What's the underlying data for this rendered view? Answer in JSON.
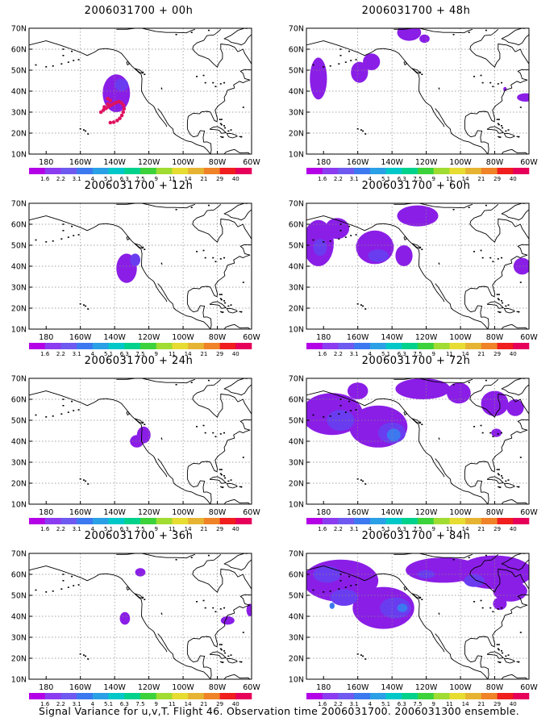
{
  "caption": "Signal Variance for u,v,T. Flight 46. Observation time 2006031700. 2006031300 ensemble.",
  "colors": {
    "land_outline": "#000000",
    "grid": "#888888",
    "observation_dots": "#e0115f"
  },
  "chart_data": {
    "type": "heatmap",
    "lon_ticks": [
      "180",
      "160W",
      "140W",
      "120W",
      "100W",
      "80W",
      "60W"
    ],
    "lat_ticks": [
      "10N",
      "20N",
      "30N",
      "40N",
      "50N",
      "60N",
      "70N"
    ],
    "xlim": [
      -190,
      -60
    ],
    "ylim": [
      10,
      70
    ],
    "legend": {
      "labels": [
        "1.6",
        "2.2",
        "3.1",
        "4",
        "5.1",
        "6.3",
        "7.5",
        "9",
        "11",
        "14",
        "21",
        "29",
        "40"
      ],
      "colors": [
        "#b400e6",
        "#8c3cf0",
        "#6e5af0",
        "#3c78f0",
        "#2aa0e6",
        "#00c8c8",
        "#00d28c",
        "#3cd23c",
        "#a0dc32",
        "#e6dc32",
        "#e6b432",
        "#f08228",
        "#f01e1e",
        "#e6005a"
      ]
    },
    "panels": [
      {
        "title": "2006031700 + 00h",
        "blobs": [
          {
            "lon": -139,
            "lat": 39,
            "rx": 8,
            "ry": 9,
            "level": 0
          },
          {
            "lon": -136,
            "lat": 43,
            "rx": 4,
            "ry": 3,
            "level": 1
          }
        ],
        "dots": [
          {
            "lon": -148,
            "lat": 30
          },
          {
            "lon": -146.5,
            "lat": 31
          },
          {
            "lon": -145,
            "lat": 31.8
          },
          {
            "lon": -143.5,
            "lat": 32.6
          },
          {
            "lon": -142,
            "lat": 33.4
          },
          {
            "lon": -140.5,
            "lat": 34
          },
          {
            "lon": -139,
            "lat": 34.6
          },
          {
            "lon": -137.5,
            "lat": 35
          },
          {
            "lon": -136,
            "lat": 34.4
          },
          {
            "lon": -134.8,
            "lat": 33.2
          },
          {
            "lon": -134.5,
            "lat": 31.6
          },
          {
            "lon": -135,
            "lat": 30
          },
          {
            "lon": -135.8,
            "lat": 28.4
          },
          {
            "lon": -137,
            "lat": 27
          },
          {
            "lon": -138.5,
            "lat": 26
          },
          {
            "lon": -140.5,
            "lat": 25.2
          },
          {
            "lon": -142.5,
            "lat": 25
          },
          {
            "lon": -146,
            "lat": 32.5
          },
          {
            "lon": -144,
            "lat": 33.8
          },
          {
            "lon": -142.5,
            "lat": 35.6
          },
          {
            "lon": -144,
            "lat": 36.4
          }
        ]
      },
      {
        "title": "2006031700 + 48h",
        "blobs": [
          {
            "lon": -183,
            "lat": 46,
            "rx": 5,
            "ry": 10,
            "level": 0
          },
          {
            "lon": -159,
            "lat": 49,
            "rx": 5,
            "ry": 5,
            "level": 0
          },
          {
            "lon": -152,
            "lat": 54,
            "rx": 5,
            "ry": 4,
            "level": 0
          },
          {
            "lon": -130,
            "lat": 68,
            "rx": 7,
            "ry": 4,
            "level": 0
          },
          {
            "lon": -121,
            "lat": 65,
            "rx": 3,
            "ry": 2,
            "level": 0
          },
          {
            "lon": -62,
            "lat": 37,
            "rx": 5,
            "ry": 2,
            "level": 0
          },
          {
            "lon": -74,
            "lat": 41,
            "rx": 1,
            "ry": 1,
            "level": 0
          }
        ],
        "dots": []
      },
      {
        "title": "2006031700 + 12h",
        "blobs": [
          {
            "lon": -133,
            "lat": 39,
            "rx": 6,
            "ry": 7,
            "level": 0
          },
          {
            "lon": -128,
            "lat": 43,
            "rx": 3,
            "ry": 3,
            "level": 1
          }
        ],
        "dots": []
      },
      {
        "title": "2006031700 + 60h",
        "blobs": [
          {
            "lon": -183,
            "lat": 51,
            "rx": 9,
            "ry": 11,
            "level": 0
          },
          {
            "lon": -172,
            "lat": 58,
            "rx": 7,
            "ry": 5,
            "level": 0
          },
          {
            "lon": -150,
            "lat": 49,
            "rx": 11,
            "ry": 8,
            "level": 0
          },
          {
            "lon": -133,
            "lat": 45,
            "rx": 5,
            "ry": 5,
            "level": 0
          },
          {
            "lon": -148,
            "lat": 45,
            "rx": 6,
            "ry": 3,
            "level": 1
          },
          {
            "lon": -182,
            "lat": 49,
            "rx": 4,
            "ry": 4,
            "level": 1
          },
          {
            "lon": -125,
            "lat": 64,
            "rx": 12,
            "ry": 5,
            "level": 0
          },
          {
            "lon": -64,
            "lat": 40,
            "rx": 5,
            "ry": 4,
            "level": 0
          }
        ],
        "dots": []
      },
      {
        "title": "2006031700 + 24h",
        "blobs": [
          {
            "lon": -127,
            "lat": 40,
            "rx": 4,
            "ry": 3,
            "level": 0
          },
          {
            "lon": -123,
            "lat": 43,
            "rx": 4,
            "ry": 4,
            "level": 0
          }
        ],
        "dots": []
      },
      {
        "title": "2006031700 + 72h",
        "blobs": [
          {
            "lon": -175,
            "lat": 53,
            "rx": 18,
            "ry": 10,
            "level": 0
          },
          {
            "lon": -148,
            "lat": 47,
            "rx": 17,
            "ry": 10,
            "level": 0
          },
          {
            "lon": -140,
            "lat": 44,
            "rx": 8,
            "ry": 5,
            "level": 1
          },
          {
            "lon": -139,
            "lat": 43,
            "rx": 4,
            "ry": 3,
            "level": 2
          },
          {
            "lon": -170,
            "lat": 50,
            "rx": 8,
            "ry": 5,
            "level": 1
          },
          {
            "lon": -160,
            "lat": 64,
            "rx": 6,
            "ry": 4,
            "level": 0
          },
          {
            "lon": -122,
            "lat": 65,
            "rx": 16,
            "ry": 5,
            "level": 0
          },
          {
            "lon": -101,
            "lat": 63,
            "rx": 7,
            "ry": 5,
            "level": 0
          },
          {
            "lon": -80,
            "lat": 58,
            "rx": 8,
            "ry": 6,
            "level": 0
          },
          {
            "lon": -68,
            "lat": 56,
            "rx": 5,
            "ry": 4,
            "level": 0
          },
          {
            "lon": -79,
            "lat": 44,
            "rx": 3,
            "ry": 2,
            "level": 0
          }
        ],
        "dots": []
      },
      {
        "title": "2006031700 + 36h",
        "blobs": [
          {
            "lon": -125,
            "lat": 61,
            "rx": 3,
            "ry": 2,
            "level": 0
          },
          {
            "lon": -134,
            "lat": 39,
            "rx": 3,
            "ry": 3,
            "level": 0
          },
          {
            "lon": -74,
            "lat": 38,
            "rx": 4,
            "ry": 2,
            "level": 0
          },
          {
            "lon": -61,
            "lat": 43,
            "rx": 2,
            "ry": 3,
            "level": 0
          }
        ],
        "dots": []
      },
      {
        "title": "2006031700 + 84h",
        "blobs": [
          {
            "lon": -170,
            "lat": 57,
            "rx": 22,
            "ry": 10,
            "level": 0
          },
          {
            "lon": -145,
            "lat": 44,
            "rx": 18,
            "ry": 10,
            "level": 0
          },
          {
            "lon": -138,
            "lat": 44,
            "rx": 9,
            "ry": 5,
            "level": 1
          },
          {
            "lon": -134,
            "lat": 44,
            "rx": 3,
            "ry": 2,
            "level": 2
          },
          {
            "lon": -168,
            "lat": 49,
            "rx": 8,
            "ry": 4,
            "level": 1
          },
          {
            "lon": -178,
            "lat": 60,
            "rx": 8,
            "ry": 4,
            "level": 1
          },
          {
            "lon": -175,
            "lat": 45,
            "rx": 1.5,
            "ry": 1.5,
            "level": 2
          },
          {
            "lon": -110,
            "lat": 62,
            "rx": 22,
            "ry": 6,
            "level": 0
          },
          {
            "lon": -80,
            "lat": 61,
            "rx": 22,
            "ry": 8,
            "level": 0
          },
          {
            "lon": -71,
            "lat": 52,
            "rx": 10,
            "ry": 5,
            "level": 0
          },
          {
            "lon": -77,
            "lat": 46,
            "rx": 4,
            "ry": 3,
            "level": 0
          },
          {
            "lon": -92,
            "lat": 57,
            "rx": 6,
            "ry": 3,
            "level": 1
          },
          {
            "lon": -120,
            "lat": 60,
            "rx": 5,
            "ry": 2,
            "level": 1
          }
        ],
        "dots": []
      }
    ]
  }
}
